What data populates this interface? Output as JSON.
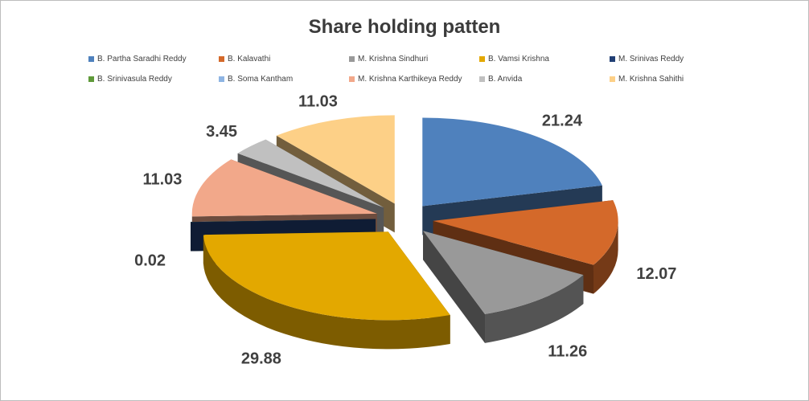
{
  "chart_data": {
    "type": "pie",
    "title": "Share holding patten",
    "legend_position": "top",
    "series": [
      {
        "name": "B. Partha Saradhi  Reddy",
        "value": 21.24,
        "label": "21.24",
        "color": "#4f81bd"
      },
      {
        "name": "B. Kalavathi",
        "value": 12.07,
        "label": "12.07",
        "color": "#d4692a"
      },
      {
        "name": "M. Krishna Sindhuri",
        "value": 11.26,
        "label": "11.26",
        "color": "#999999"
      },
      {
        "name": "B. Vamsi Krishna",
        "value": 29.88,
        "label": "29.88",
        "color": "#e3a800"
      },
      {
        "name": "M. Srinivas Reddy",
        "value": 0.02,
        "label": "0.02",
        "color": "#213f74"
      },
      {
        "name": "B. Srinivasula Reddy",
        "value": 0.01,
        "label": "",
        "color": "#5f9a3a"
      },
      {
        "name": "B. Soma Kantham",
        "value": 0.01,
        "label": "",
        "color": "#8eb4e3"
      },
      {
        "name": "M. Krishna Karthikeya Reddy",
        "value": 11.03,
        "label": "11.03",
        "color": "#f2a88a"
      },
      {
        "name": "B. Anvida",
        "value": 3.45,
        "label": "3.45",
        "color": "#c0c0c0"
      },
      {
        "name": "M. Krishna Sahithi",
        "value": 11.03,
        "label": "11.03",
        "color": "#fdd087"
      }
    ]
  }
}
